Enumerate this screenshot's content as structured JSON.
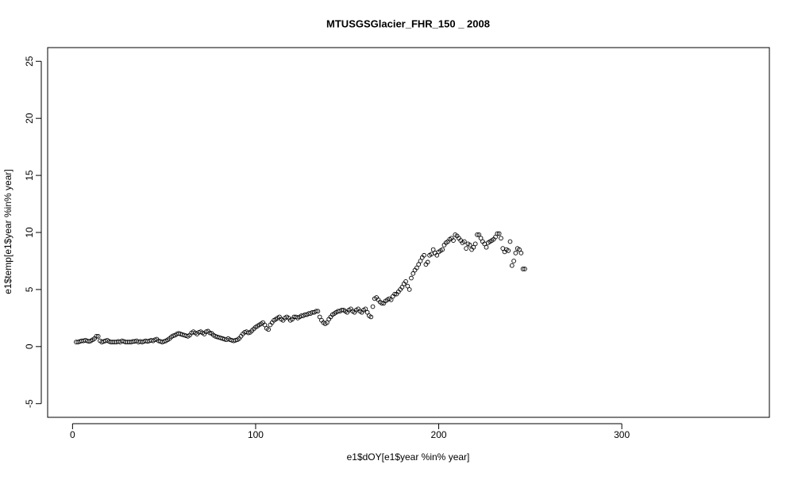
{
  "chart_data": {
    "type": "scatter",
    "title": "MTUSGSGlacier_FHR_150 _ 2008",
    "x_label": "e1$dOY[e1$year %in% year]",
    "y_label": "e1$temp[e1$year %in% year]",
    "color": "#000000",
    "xlim": [
      -13.6,
      380.6
    ],
    "ylim": [
      -6.2,
      26.2
    ],
    "xticks": [
      0,
      100,
      200,
      300
    ],
    "yticks": [
      -5,
      0,
      5,
      10,
      15,
      20,
      25
    ],
    "x": [
      2,
      3,
      4,
      5,
      6,
      7,
      8,
      9,
      10,
      11,
      12,
      13,
      14,
      15,
      16,
      17,
      18,
      19,
      20,
      21,
      22,
      23,
      24,
      25,
      26,
      27,
      28,
      29,
      30,
      31,
      32,
      33,
      34,
      35,
      36,
      37,
      38,
      39,
      40,
      41,
      42,
      43,
      44,
      45,
      46,
      47,
      48,
      49,
      50,
      51,
      52,
      53,
      54,
      55,
      56,
      57,
      58,
      59,
      60,
      61,
      62,
      63,
      64,
      65,
      66,
      67,
      68,
      69,
      70,
      71,
      72,
      73,
      74,
      75,
      76,
      77,
      78,
      79,
      80,
      81,
      82,
      83,
      84,
      85,
      86,
      87,
      88,
      89,
      90,
      91,
      92,
      93,
      94,
      95,
      96,
      97,
      98,
      99,
      100,
      101,
      102,
      103,
      104,
      105,
      106,
      107,
      108,
      109,
      110,
      111,
      112,
      113,
      114,
      115,
      116,
      117,
      118,
      119,
      120,
      121,
      122,
      123,
      124,
      125,
      126,
      127,
      128,
      129,
      130,
      131,
      132,
      133,
      134,
      135,
      136,
      137,
      138,
      139,
      140,
      141,
      142,
      143,
      144,
      145,
      146,
      147,
      148,
      149,
      150,
      151,
      152,
      153,
      154,
      155,
      156,
      157,
      158,
      159,
      160,
      161,
      162,
      163,
      164,
      165,
      166,
      167,
      168,
      169,
      170,
      171,
      172,
      173,
      174,
      175,
      176,
      177,
      178,
      179,
      180,
      181,
      182,
      183,
      184,
      185,
      186,
      187,
      188,
      189,
      190,
      191,
      192,
      193,
      194,
      195,
      196,
      197,
      198,
      199,
      200,
      201,
      202,
      203,
      204,
      205,
      206,
      207,
      208,
      209,
      210,
      211,
      212,
      213,
      214,
      215,
      216,
      217,
      218,
      219,
      220,
      221,
      222,
      223,
      224,
      225,
      226,
      227,
      228,
      229,
      230,
      231,
      232,
      233,
      234,
      235,
      236,
      237,
      238,
      239,
      240,
      241,
      242,
      243,
      244,
      245,
      246,
      247
    ],
    "values": [
      0.4,
      0.4,
      0.45,
      0.5,
      0.5,
      0.55,
      0.5,
      0.45,
      0.5,
      0.6,
      0.7,
      0.9,
      0.9,
      0.5,
      0.4,
      0.45,
      0.5,
      0.55,
      0.45,
      0.4,
      0.4,
      0.4,
      0.4,
      0.45,
      0.4,
      0.5,
      0.45,
      0.4,
      0.4,
      0.4,
      0.4,
      0.45,
      0.45,
      0.5,
      0.4,
      0.45,
      0.4,
      0.45,
      0.5,
      0.45,
      0.5,
      0.55,
      0.5,
      0.6,
      0.65,
      0.5,
      0.45,
      0.4,
      0.45,
      0.5,
      0.6,
      0.7,
      0.85,
      0.95,
      1.0,
      1.1,
      1.15,
      1.1,
      1.05,
      1.0,
      0.95,
      0.9,
      1.0,
      1.2,
      1.3,
      1.2,
      1.1,
      1.25,
      1.3,
      1.2,
      1.1,
      1.3,
      1.35,
      1.2,
      1.15,
      1.0,
      0.9,
      0.85,
      0.8,
      0.75,
      0.7,
      0.65,
      0.6,
      0.7,
      0.6,
      0.55,
      0.5,
      0.55,
      0.6,
      0.7,
      0.9,
      1.1,
      1.25,
      1.3,
      1.2,
      1.25,
      1.4,
      1.55,
      1.7,
      1.8,
      1.9,
      2.0,
      2.1,
      1.9,
      1.6,
      1.5,
      1.9,
      2.1,
      2.3,
      2.4,
      2.5,
      2.6,
      2.4,
      2.3,
      2.5,
      2.6,
      2.5,
      2.3,
      2.4,
      2.6,
      2.6,
      2.5,
      2.6,
      2.7,
      2.7,
      2.8,
      2.8,
      2.9,
      2.9,
      3.0,
      3.0,
      3.1,
      3.1,
      2.6,
      2.3,
      2.1,
      2.0,
      2.1,
      2.4,
      2.6,
      2.8,
      2.9,
      3.0,
      3.1,
      3.1,
      3.2,
      3.2,
      3.1,
      3.0,
      3.2,
      3.3,
      3.1,
      3.0,
      3.2,
      3.3,
      3.1,
      3.0,
      3.2,
      3.3,
      3.0,
      2.7,
      2.6,
      3.5,
      4.2,
      4.3,
      4.1,
      3.9,
      3.8,
      3.8,
      4.0,
      4.1,
      4.2,
      4.1,
      4.4,
      4.6,
      4.6,
      4.8,
      5.0,
      5.2,
      5.5,
      5.7,
      5.3,
      5.0,
      6.0,
      6.4,
      6.7,
      6.9,
      7.2,
      7.5,
      7.8,
      8.0,
      7.2,
      7.4,
      8.0,
      8.1,
      8.5,
      8.2,
      8.0,
      8.3,
      8.4,
      8.5,
      8.9,
      9.1,
      9.2,
      9.4,
      9.5,
      9.3,
      9.8,
      9.7,
      9.5,
      9.3,
      9.1,
      9.2,
      8.6,
      9.0,
      8.9,
      8.5,
      8.7,
      9.0,
      9.8,
      9.8,
      9.5,
      9.2,
      9.0,
      8.7,
      9.1,
      9.2,
      9.3,
      9.4,
      9.6,
      9.9,
      9.9,
      9.5,
      8.6,
      8.3,
      8.5,
      8.4,
      9.2,
      7.1,
      7.5,
      8.2,
      8.6,
      8.5,
      8.2,
      6.8,
      6.8
    ]
  }
}
